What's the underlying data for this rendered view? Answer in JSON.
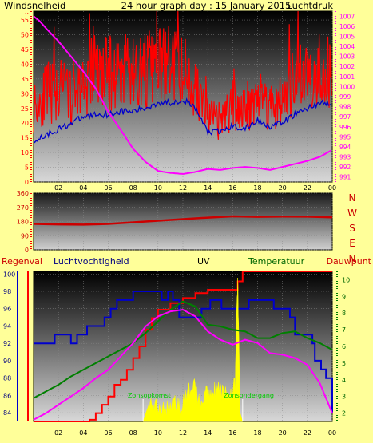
{
  "header": {
    "title": "24 hour graph day : 15 January 2015",
    "left_label": "Windsnelheid",
    "right_label": "Luchtdruk"
  },
  "colors": {
    "background": "#ffff99",
    "wind": "#ff0000",
    "gust": "#0000cc",
    "pressure": "#ff00ff",
    "direction": "#cc0000",
    "rain": "#ff0000",
    "humidity": "#0000cc",
    "uv": "#ffff00",
    "temperature": "#008000",
    "dewpoint": "#ff00ff",
    "sunrise": "#00cc00",
    "label_navy": "#000080",
    "label_red": "#cc0000",
    "label_green": "#006600",
    "label_magenta": "#ff00ff"
  },
  "chart_data": [
    {
      "id": "wind-pressure",
      "type": "line",
      "x_ticks": [
        "02",
        "04",
        "06",
        "08",
        "10",
        "12",
        "14",
        "16",
        "18",
        "20",
        "22",
        "00"
      ],
      "y_left_ticks": [
        "0",
        "5",
        "10",
        "15",
        "20",
        "25",
        "30",
        "35",
        "40",
        "45",
        "50",
        "55"
      ],
      "y_left_top_label": "..",
      "y_right_ticks": [
        "991",
        "992",
        "993",
        "994",
        "995",
        "996",
        "997",
        "998",
        "999",
        "1000",
        "1001",
        "1002",
        "1003",
        "1004",
        "1005",
        "1006",
        "1007"
      ],
      "ylim_left": [
        0,
        58
      ],
      "ylim_right": [
        990.5,
        1007.5
      ],
      "xlim": [
        0,
        24
      ],
      "series": [
        {
          "name": "Windsnelheid",
          "axis": "left",
          "style": "noisy",
          "x": [
            0,
            1,
            2,
            3,
            4,
            5,
            6,
            7,
            8,
            9,
            10,
            11,
            12,
            13,
            14,
            15,
            16,
            17,
            18,
            19,
            20,
            21,
            22,
            23,
            24
          ],
          "y": [
            26,
            30,
            31,
            30,
            33,
            36,
            37,
            37,
            37,
            38,
            39,
            40,
            38,
            32,
            22,
            20,
            26,
            25,
            30,
            26,
            27,
            34,
            37,
            38,
            36
          ]
        },
        {
          "name": "Windstoot",
          "axis": "left",
          "x": [
            0,
            1,
            2,
            3,
            4,
            5,
            6,
            7,
            8,
            9,
            10,
            11,
            12,
            13,
            14,
            15,
            16,
            17,
            18,
            19,
            20,
            21,
            22,
            23,
            24
          ],
          "y": [
            14,
            16,
            18,
            20,
            22,
            23,
            23,
            24,
            24,
            25,
            27,
            27,
            28,
            25,
            17,
            17,
            19,
            18,
            21,
            19,
            20,
            23,
            25,
            27,
            26
          ]
        },
        {
          "name": "Luchtdruk",
          "axis": "right",
          "x": [
            0,
            0.5,
            1,
            2,
            3,
            4,
            5,
            6,
            7,
            8,
            9,
            10,
            11,
            12,
            13,
            14,
            15,
            16,
            17,
            18,
            19,
            20,
            21,
            22,
            23,
            24
          ],
          "y": [
            1007,
            1006.5,
            1005.8,
            1004.5,
            1003,
            1001.5,
            999.8,
            997.5,
            995.7,
            993.8,
            992.5,
            991.6,
            991.4,
            991.3,
            991.5,
            991.8,
            991.7,
            991.9,
            992,
            991.9,
            991.7,
            992,
            992.3,
            992.6,
            993,
            993.7
          ]
        }
      ]
    },
    {
      "id": "wind-direction",
      "type": "line",
      "y_ticks": [
        "0",
        "90",
        "180",
        "270",
        "360"
      ],
      "ylim": [
        0,
        360
      ],
      "xlim": [
        0,
        24
      ],
      "right_letters": [
        "N",
        "W",
        "S",
        "E",
        "N"
      ],
      "series": [
        {
          "name": "Windrichting",
          "x": [
            0,
            2,
            4,
            6,
            8,
            10,
            12,
            14,
            16,
            18,
            20,
            22,
            24
          ],
          "y": [
            165,
            162,
            160,
            165,
            175,
            185,
            195,
            205,
            213,
            210,
            212,
            211,
            207
          ]
        }
      ]
    },
    {
      "id": "rain-humidity-uv-temp",
      "type": "line",
      "legend": [
        "Regenval",
        "Luchtvochtigheid",
        "UV",
        "Temperatuur",
        "Dauwpunt"
      ],
      "y_left_ticks": [
        "84",
        "86",
        "88",
        "90",
        "92",
        "94",
        "96",
        "98",
        "100"
      ],
      "y_right_ticks": [
        "2",
        "3",
        "4",
        "5",
        "6",
        "7",
        "8",
        "9",
        "10"
      ],
      "ylim_left": [
        83,
        100.3
      ],
      "ylim_right": [
        1.5,
        10.5
      ],
      "xlim": [
        0,
        24
      ],
      "x_ticks": [
        "02",
        "04",
        "06",
        "08",
        "10",
        "12",
        "14",
        "16",
        "18",
        "20",
        "22",
        "00"
      ],
      "annotations": [
        "Zonsopkomst",
        "Zonsondergang"
      ],
      "series": [
        {
          "name": "Luchtvochtigheid",
          "axis": "left",
          "step": true,
          "x": [
            0,
            1.7,
            3,
            3.5,
            4.3,
            5,
            5.7,
            6.2,
            6.7,
            7.4,
            8,
            8.9,
            10.3,
            10.8,
            11.2,
            11.7,
            12.4,
            13,
            13.5,
            14.2,
            15.1,
            16.5,
            17.3,
            18.3,
            19.3,
            20.6,
            21,
            22.4,
            22.6,
            23.1,
            23.5,
            24
          ],
          "y": [
            92,
            93,
            92,
            93,
            94,
            94,
            95,
            96,
            97,
            97,
            98,
            98,
            97,
            98,
            97,
            95,
            95,
            95,
            96,
            97,
            96,
            96,
            97,
            97,
            96,
            95,
            93,
            92,
            90,
            89,
            88,
            84
          ]
        },
        {
          "name": "Regenval",
          "axis": "right",
          "step": true,
          "x": [
            0,
            4.2,
            4.5,
            5,
            5.5,
            6,
            6.5,
            7,
            7.5,
            8,
            8.5,
            9,
            9.5,
            10,
            11,
            12,
            13,
            14,
            16.4,
            16.8,
            17,
            24
          ],
          "y": [
            1.5,
            1.5,
            1.6,
            2,
            2.5,
            3,
            3.7,
            4,
            4.6,
            5.3,
            6,
            7,
            7.7,
            8.2,
            8.6,
            8.9,
            9.2,
            9.4,
            9.9,
            10.5,
            10.5,
            10.5
          ]
        },
        {
          "name": "UV",
          "axis": "right",
          "style": "fill",
          "x": [
            8.8,
            9.3,
            9.8,
            10.3,
            10.8,
            11.3,
            11.8,
            12.3,
            12.8,
            13.3,
            13.8,
            14.3,
            14.8,
            15.3,
            15.8,
            16.2,
            16.4,
            16.6,
            16.8
          ],
          "y": [
            1.5,
            2.6,
            2.4,
            2.2,
            2.3,
            2.7,
            2.4,
            2.9,
            3.9,
            2.6,
            3.2,
            3.4,
            3.4,
            3.2,
            3.3,
            3.6,
            10.3,
            2,
            1.5
          ]
        },
        {
          "name": "Temperatuur",
          "axis": "right",
          "x": [
            0,
            1,
            2,
            3,
            4,
            5,
            6,
            7,
            8,
            9,
            10,
            11,
            12,
            13,
            14,
            15,
            16,
            17,
            18,
            19,
            20,
            21,
            22,
            23,
            24
          ],
          "y": [
            2.9,
            3.3,
            3.7,
            4.2,
            4.6,
            5.0,
            5.4,
            5.8,
            6.2,
            6.8,
            7.5,
            8.2,
            8.7,
            8.4,
            7.3,
            7.2,
            7.0,
            6.9,
            6.5,
            6.5,
            6.8,
            6.9,
            6.5,
            6.2,
            5.8
          ]
        },
        {
          "name": "Dauwpunt",
          "axis": "right",
          "x": [
            0,
            1,
            2,
            3,
            4,
            5,
            6,
            7,
            8,
            9,
            10,
            11,
            12,
            13,
            14,
            15,
            16,
            17,
            18,
            19,
            20,
            21,
            22,
            23,
            24
          ],
          "y": [
            1.6,
            2.0,
            2.5,
            3.0,
            3.5,
            4.1,
            4.6,
            5.4,
            6.2,
            7.2,
            7.8,
            8.1,
            8.2,
            7.8,
            6.9,
            6.4,
            6.1,
            6.4,
            6.2,
            5.6,
            5.5,
            5.3,
            4.9,
            3.8,
            2.0
          ]
        }
      ]
    }
  ]
}
